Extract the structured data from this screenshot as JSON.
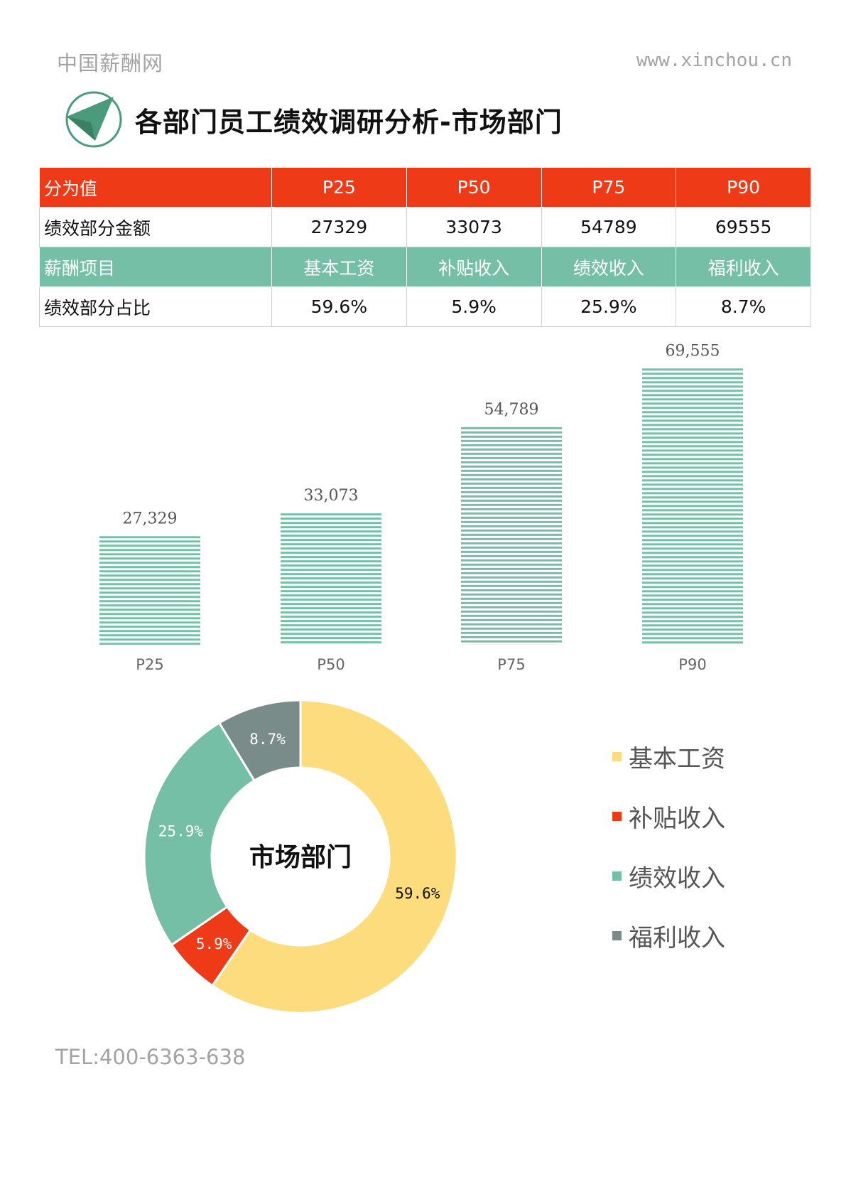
{
  "header": {
    "brand_left": "中国薪酬网",
    "brand_right": "www.xinchou.cn",
    "title": "各部门员工绩效调研分析-市场部门"
  },
  "table": {
    "rows": [
      {
        "style": "red",
        "cells": [
          "分为值",
          "P25",
          "P50",
          "P75",
          "P90"
        ]
      },
      {
        "style": "plain",
        "cells": [
          "绩效部分金额",
          "27329",
          "33073",
          "54789",
          "69555"
        ]
      },
      {
        "style": "green",
        "cells": [
          "薪酬项目",
          "基本工资",
          "补贴收入",
          "绩效收入",
          "福利收入"
        ]
      },
      {
        "style": "plain",
        "cells": [
          "绩效部分占比",
          "59.6%",
          "5.9%",
          "25.9%",
          "8.7%"
        ]
      }
    ]
  },
  "chart_data": [
    {
      "type": "bar",
      "categories": [
        "P25",
        "P50",
        "P75",
        "P90"
      ],
      "values": [
        27329,
        33073,
        54789,
        69555
      ],
      "data_labels": [
        "27,329",
        "33,073",
        "54,789",
        "69,555"
      ],
      "ylim": [
        0,
        80000
      ],
      "grid": false,
      "colors": {
        "bar": "#75bfa6"
      }
    },
    {
      "type": "pie",
      "donut": true,
      "center_label": "市场部门",
      "labels": [
        "基本工资",
        "补贴收入",
        "绩效收入",
        "福利收入"
      ],
      "values": [
        59.6,
        5.9,
        25.9,
        8.7
      ],
      "data_labels": [
        "59.6%",
        "5.9%",
        "25.9%",
        "8.7%"
      ],
      "colors": [
        "#fcdc7d",
        "#ee3a17",
        "#75bfa6",
        "#7a8c8a"
      ],
      "legend_position": "right"
    }
  ],
  "footer": {
    "tel": "TEL:400-6363-638"
  }
}
